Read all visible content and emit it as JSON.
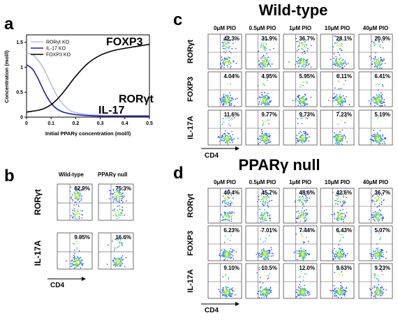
{
  "panel_a": {
    "letter": "a",
    "legend": [
      {
        "label": "RORγt KO",
        "color": "#b8bde8"
      },
      {
        "label": "IL-17 KO",
        "color": "#1f1f9e"
      },
      {
        "label": "FOXP3 KO",
        "color": "#000000"
      }
    ],
    "curve_labels": {
      "foxp3": "FOXP3",
      "rorgt": "RORγt",
      "il17": "IL-17"
    },
    "ylabel": "Concentration (mol/l)",
    "xlabel": "Initial PPARγ concentration (mol/l)",
    "x_ticks": [
      "0",
      "0.1",
      "0.2",
      "0.3",
      "0.4",
      "0.5"
    ],
    "y_ticks": [
      "0",
      "0.5",
      "1",
      "1.5"
    ]
  },
  "chart_data": {
    "type": "line",
    "xlabel": "Initial PPARγ concentration (mol/l)",
    "ylabel": "Concentration (mol/l)",
    "xlim": [
      0,
      0.5
    ],
    "ylim": [
      0,
      1.65
    ],
    "grid": false,
    "legend_position": "top-left",
    "series": [
      {
        "name": "RORγt KO",
        "color": "#b8bde8",
        "x": [
          0,
          0.025,
          0.05,
          0.075,
          0.1,
          0.125,
          0.15,
          0.175,
          0.2,
          0.25,
          0.3,
          0.35,
          0.4,
          0.45,
          0.5
        ],
        "y": [
          1.28,
          1.25,
          1.12,
          0.92,
          0.66,
          0.42,
          0.25,
          0.14,
          0.09,
          0.05,
          0.04,
          0.03,
          0.03,
          0.03,
          0.03
        ]
      },
      {
        "name": "IL-17 KO",
        "color": "#1f1f9e",
        "x": [
          0,
          0.025,
          0.05,
          0.075,
          0.1,
          0.125,
          0.15,
          0.175,
          0.2,
          0.25,
          0.3,
          0.35,
          0.4,
          0.45,
          0.5
        ],
        "y": [
          1.05,
          0.96,
          0.74,
          0.48,
          0.28,
          0.16,
          0.1,
          0.07,
          0.05,
          0.03,
          0.02,
          0.02,
          0.02,
          0.02,
          0.02
        ]
      },
      {
        "name": "FOXP3 KO",
        "color": "#000000",
        "x": [
          0,
          0.025,
          0.05,
          0.075,
          0.1,
          0.125,
          0.15,
          0.175,
          0.2,
          0.25,
          0.3,
          0.35,
          0.4,
          0.45,
          0.5
        ],
        "y": [
          0.1,
          0.12,
          0.14,
          0.18,
          0.25,
          0.36,
          0.5,
          0.66,
          0.82,
          1.08,
          1.24,
          1.33,
          1.38,
          1.42,
          1.46
        ]
      }
    ]
  },
  "panel_b": {
    "letter": "b",
    "columns": [
      "Wild-type",
      "PPARγ null"
    ],
    "rows": [
      "RORγt",
      "IL-17A"
    ],
    "values": [
      [
        "62.9%",
        "75.3%"
      ],
      [
        "9.95%",
        "16.6%"
      ]
    ],
    "axis_label": "CD4"
  },
  "panel_c": {
    "letter": "c",
    "title": "Wild-type",
    "columns": [
      "0μM PIO",
      "0.5μM PIO",
      "1μM PIO",
      "10μM PIO",
      "40μM PIO"
    ],
    "rows": [
      "RORγt",
      "FOXP3",
      "IL-17A"
    ],
    "values": [
      [
        "42.3%",
        "31.9%",
        "36.7%",
        "28.1%",
        "20.9%"
      ],
      [
        "4.04%",
        "4.95%",
        "5.95%",
        "6.11%",
        "6.41%"
      ],
      [
        "11.6%",
        "9.77%",
        "9.73%",
        "7.23%",
        "5.19%"
      ]
    ],
    "axis_label": "CD4"
  },
  "panel_d": {
    "letter": "d",
    "title": "PPARγ null",
    "columns": [
      "0μM PIO",
      "0.5μM PIO",
      "1μM PIO",
      "10μM PIO",
      "40μM PIO"
    ],
    "rows": [
      "RORγt",
      "FOXP3",
      "IL-17A"
    ],
    "values": [
      [
        "40.4%",
        "45.7%",
        "45.6%",
        "42.6%",
        "36.7%"
      ],
      [
        "6.23%",
        "7.01%",
        "7.44%",
        "6.43%",
        "5.07%"
      ],
      [
        "9.10%",
        "10.5%",
        "12.0%",
        "9.63%",
        "9.23%"
      ]
    ],
    "axis_label": "CD4"
  }
}
